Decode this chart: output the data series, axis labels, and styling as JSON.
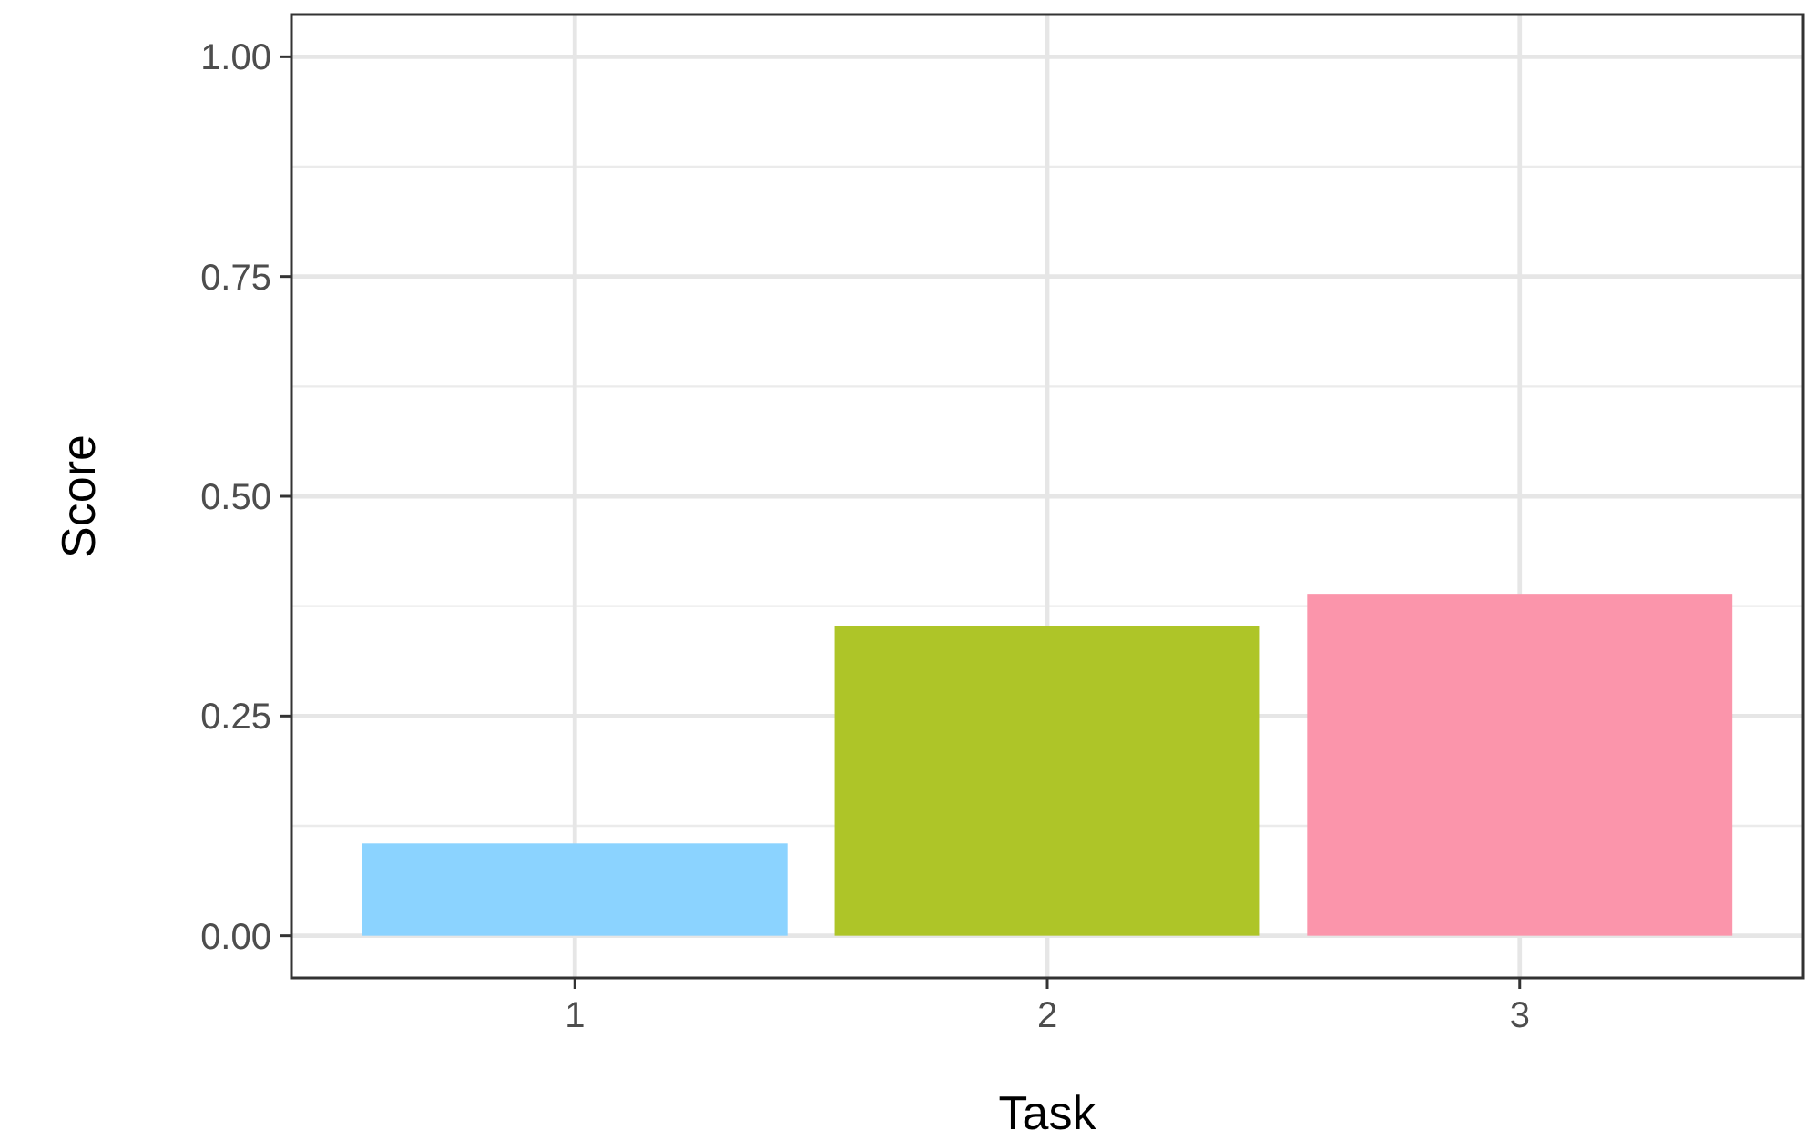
{
  "chart_data": {
    "type": "bar",
    "xlabel": "Task",
    "ylabel": "Score",
    "categories": [
      "1",
      "2",
      "3"
    ],
    "values": [
      0.105,
      0.352,
      0.389
    ],
    "colors": [
      "#8bd3ff",
      "#aec528",
      "#fb95ab"
    ],
    "ylim": [
      -0.048,
      1.048
    ],
    "yticks": [
      {
        "value": 0,
        "label": "0.00"
      },
      {
        "value": 0.25,
        "label": "0.25"
      },
      {
        "value": 0.5,
        "label": "0.50"
      },
      {
        "value": 0.75,
        "label": "0.75"
      },
      {
        "value": 1,
        "label": "1.00"
      }
    ],
    "grid": true
  }
}
